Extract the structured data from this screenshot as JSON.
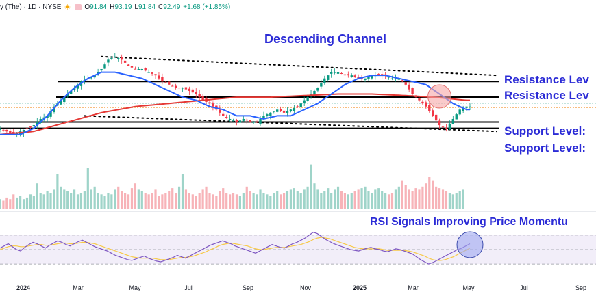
{
  "header": {
    "symbol": "y (The) · 1D · NYSE",
    "open_label": "O",
    "open": "91.84",
    "high_label": "H",
    "high": "93.19",
    "low_label": "L",
    "low": "91.84",
    "close_label": "C",
    "close": "92.49",
    "change": "+1.68 (+1.85%)"
  },
  "colors": {
    "candle_up": "#089981",
    "candle_down": "#f23645",
    "ma50": "#2962ff",
    "ma200": "#e53935",
    "annotation": "#2b2bd6",
    "rsi_line": "#7e57c2",
    "rsi_ma": "#f7c948",
    "rsi_band": "#ede7f6"
  },
  "chart_data": {
    "type": "candlestick",
    "annotations": {
      "channel": "Descending Channel",
      "resistance_1": "Resistance Lev",
      "resistance_2": "Resistance Lev",
      "support_1": "Support Level:",
      "support_2": "Support Level:",
      "rsi_note": "RSI Signals Improving Price Momentu"
    },
    "x_ticks": [
      {
        "label": "2024",
        "year": true
      },
      {
        "label": "Mar",
        "year": false
      },
      {
        "label": "May",
        "year": false
      },
      {
        "label": "Jul",
        "year": false
      },
      {
        "label": "Sep",
        "year": false
      },
      {
        "label": "Nov",
        "year": false
      },
      {
        "label": "2025",
        "year": true
      },
      {
        "label": "Mar",
        "year": false
      },
      {
        "label": "May",
        "year": false
      },
      {
        "label": "Jul",
        "year": false
      },
      {
        "label": "Sep",
        "year": false
      }
    ],
    "price_path": [
      [
        0,
        80
      ],
      [
        2,
        79
      ],
      [
        4,
        78
      ],
      [
        6,
        79
      ],
      [
        8,
        80
      ],
      [
        10,
        81
      ],
      [
        12,
        83
      ],
      [
        14,
        84
      ],
      [
        16,
        87
      ],
      [
        18,
        89
      ],
      [
        20,
        91
      ],
      [
        22,
        93
      ],
      [
        24,
        95
      ],
      [
        26,
        96
      ],
      [
        28,
        97
      ],
      [
        30,
        99
      ],
      [
        32,
        102
      ],
      [
        34,
        103
      ],
      [
        36,
        102
      ],
      [
        38,
        100
      ],
      [
        40,
        99
      ],
      [
        42,
        99
      ],
      [
        44,
        98
      ],
      [
        46,
        97
      ],
      [
        48,
        95
      ],
      [
        50,
        94
      ],
      [
        52,
        93
      ],
      [
        54,
        93
      ],
      [
        56,
        92
      ],
      [
        58,
        91
      ],
      [
        60,
        89
      ],
      [
        62,
        88
      ],
      [
        64,
        86
      ],
      [
        66,
        84
      ],
      [
        68,
        83
      ],
      [
        70,
        82
      ],
      [
        72,
        83
      ],
      [
        74,
        82
      ],
      [
        76,
        82
      ],
      [
        78,
        84
      ],
      [
        80,
        85
      ],
      [
        82,
        86
      ],
      [
        84,
        85
      ],
      [
        86,
        86
      ],
      [
        88,
        87
      ],
      [
        90,
        89
      ],
      [
        92,
        91
      ],
      [
        94,
        93
      ],
      [
        96,
        96
      ],
      [
        98,
        98
      ],
      [
        100,
        98
      ],
      [
        102,
        97
      ],
      [
        104,
        97
      ],
      [
        106,
        96
      ],
      [
        108,
        96
      ],
      [
        110,
        97
      ],
      [
        112,
        97
      ],
      [
        114,
        97
      ],
      [
        116,
        96
      ],
      [
        118,
        96
      ],
      [
        120,
        94
      ],
      [
        122,
        91
      ],
      [
        124,
        89
      ],
      [
        126,
        87
      ],
      [
        128,
        84
      ],
      [
        130,
        81
      ],
      [
        132,
        80
      ],
      [
        134,
        83
      ],
      [
        136,
        86
      ],
      [
        138,
        87
      ]
    ],
    "ma50_path": [
      [
        0,
        78
      ],
      [
        6,
        78
      ],
      [
        10,
        80
      ],
      [
        14,
        84
      ],
      [
        18,
        89
      ],
      [
        22,
        93
      ],
      [
        26,
        96
      ],
      [
        30,
        98
      ],
      [
        34,
        98
      ],
      [
        38,
        97
      ],
      [
        42,
        96
      ],
      [
        46,
        94
      ],
      [
        50,
        92
      ],
      [
        54,
        90
      ],
      [
        58,
        89
      ],
      [
        62,
        87
      ],
      [
        66,
        86
      ],
      [
        70,
        84
      ],
      [
        74,
        84
      ],
      [
        78,
        83
      ],
      [
        82,
        84
      ],
      [
        86,
        84
      ],
      [
        90,
        86
      ],
      [
        94,
        88
      ],
      [
        98,
        91
      ],
      [
        102,
        94
      ],
      [
        106,
        96
      ],
      [
        110,
        97
      ],
      [
        114,
        97
      ],
      [
        118,
        96
      ],
      [
        122,
        95
      ],
      [
        126,
        94
      ],
      [
        130,
        91
      ],
      [
        134,
        88
      ],
      [
        138,
        86
      ]
    ],
    "ma200_path": [
      [
        0,
        78
      ],
      [
        10,
        79
      ],
      [
        20,
        82
      ],
      [
        30,
        85
      ],
      [
        40,
        87
      ],
      [
        50,
        88
      ],
      [
        60,
        89
      ],
      [
        70,
        90
      ],
      [
        80,
        90
      ],
      [
        90,
        90.5
      ],
      [
        100,
        91
      ],
      [
        110,
        91
      ],
      [
        120,
        90.5
      ],
      [
        128,
        90
      ],
      [
        138,
        89
      ]
    ],
    "levels": [
      95,
      90,
      82,
      80
    ],
    "channel_upper": [
      [
        30,
        103
      ],
      [
        138,
        97
      ]
    ],
    "channel_lower": [
      [
        25,
        84
      ],
      [
        138,
        79
      ]
    ],
    "highlight_price": [
      130,
      90
    ],
    "volume": [
      6,
      5,
      7,
      6,
      9,
      7,
      8,
      6,
      7,
      9,
      8,
      16,
      10,
      9,
      11,
      10,
      12,
      22,
      14,
      12,
      11,
      10,
      12,
      9,
      10,
      11,
      26,
      12,
      14,
      10,
      9,
      8,
      10,
      9,
      12,
      14,
      11,
      10,
      9,
      13,
      16,
      12,
      11,
      10,
      9,
      10,
      12,
      8,
      9,
      10,
      11,
      13,
      10,
      14,
      22,
      12,
      10,
      9,
      8,
      10,
      12,
      14,
      10,
      9,
      8,
      11,
      13,
      10,
      9,
      10,
      9,
      8,
      10,
      14,
      11,
      10,
      9,
      12,
      10,
      9,
      8,
      10,
      11,
      9,
      10,
      11,
      12,
      13,
      11,
      10,
      12,
      14,
      28,
      16,
      12,
      10,
      11,
      13,
      10,
      12,
      14,
      11,
      10,
      9,
      10,
      11,
      12,
      13,
      14,
      11,
      10,
      12,
      13,
      11,
      10,
      9,
      10,
      12,
      14,
      18,
      15,
      12,
      11,
      13,
      12,
      14,
      16,
      20,
      18,
      14,
      13,
      12,
      11,
      10,
      9,
      10,
      11,
      12
    ],
    "rsi": [
      52,
      55,
      58,
      54,
      50,
      48,
      53,
      57,
      60,
      58,
      55,
      52,
      56,
      59,
      62,
      60,
      57,
      55,
      58,
      61,
      63,
      60,
      57,
      54,
      52,
      50,
      48,
      45,
      42,
      40,
      38,
      36,
      35,
      37,
      39,
      41,
      38,
      36,
      34,
      33,
      35,
      37,
      39,
      42,
      40,
      38,
      41,
      44,
      47,
      50,
      53,
      56,
      58,
      60,
      62,
      60,
      58,
      55,
      53,
      51,
      49,
      47,
      45,
      48,
      51,
      54,
      57,
      55,
      53,
      52,
      55,
      58,
      60,
      63,
      66,
      70,
      74,
      72,
      68,
      64,
      61,
      58,
      56,
      54,
      52,
      50,
      49,
      48,
      50,
      52,
      53,
      51,
      50,
      48,
      47,
      49,
      51,
      50,
      48,
      46,
      44,
      40,
      36,
      33,
      30,
      32,
      35,
      38,
      41,
      44,
      47,
      50,
      52,
      55,
      58
    ],
    "rsi_ma": [
      50,
      52,
      54,
      55,
      55,
      54,
      54,
      55,
      56,
      57,
      57,
      56,
      56,
      57,
      58,
      59,
      59,
      58,
      58,
      59,
      60,
      60,
      59,
      58,
      56,
      54,
      52,
      50,
      48,
      46,
      44,
      42,
      40,
      39,
      38,
      38,
      38,
      38,
      37,
      36,
      36,
      36,
      37,
      38,
      39,
      39,
      40,
      41,
      43,
      45,
      47,
      50,
      52,
      55,
      57,
      58,
      59,
      58,
      57,
      56,
      55,
      53,
      51,
      50,
      50,
      51,
      52,
      53,
      53,
      53,
      54,
      55,
      56,
      57,
      59,
      61,
      64,
      66,
      67,
      66,
      65,
      63,
      61,
      59,
      57,
      55,
      53,
      52,
      51,
      51,
      51,
      51,
      51,
      50,
      49,
      49,
      49,
      49,
      49,
      48,
      47,
      45,
      43,
      41,
      38,
      36,
      35,
      35,
      36,
      38,
      40,
      43,
      46,
      49,
      52
    ],
    "rsi_levels": [
      70,
      50,
      30
    ],
    "price_range": [
      74,
      108
    ],
    "rsi_range": [
      15,
      85
    ],
    "grid": false
  }
}
